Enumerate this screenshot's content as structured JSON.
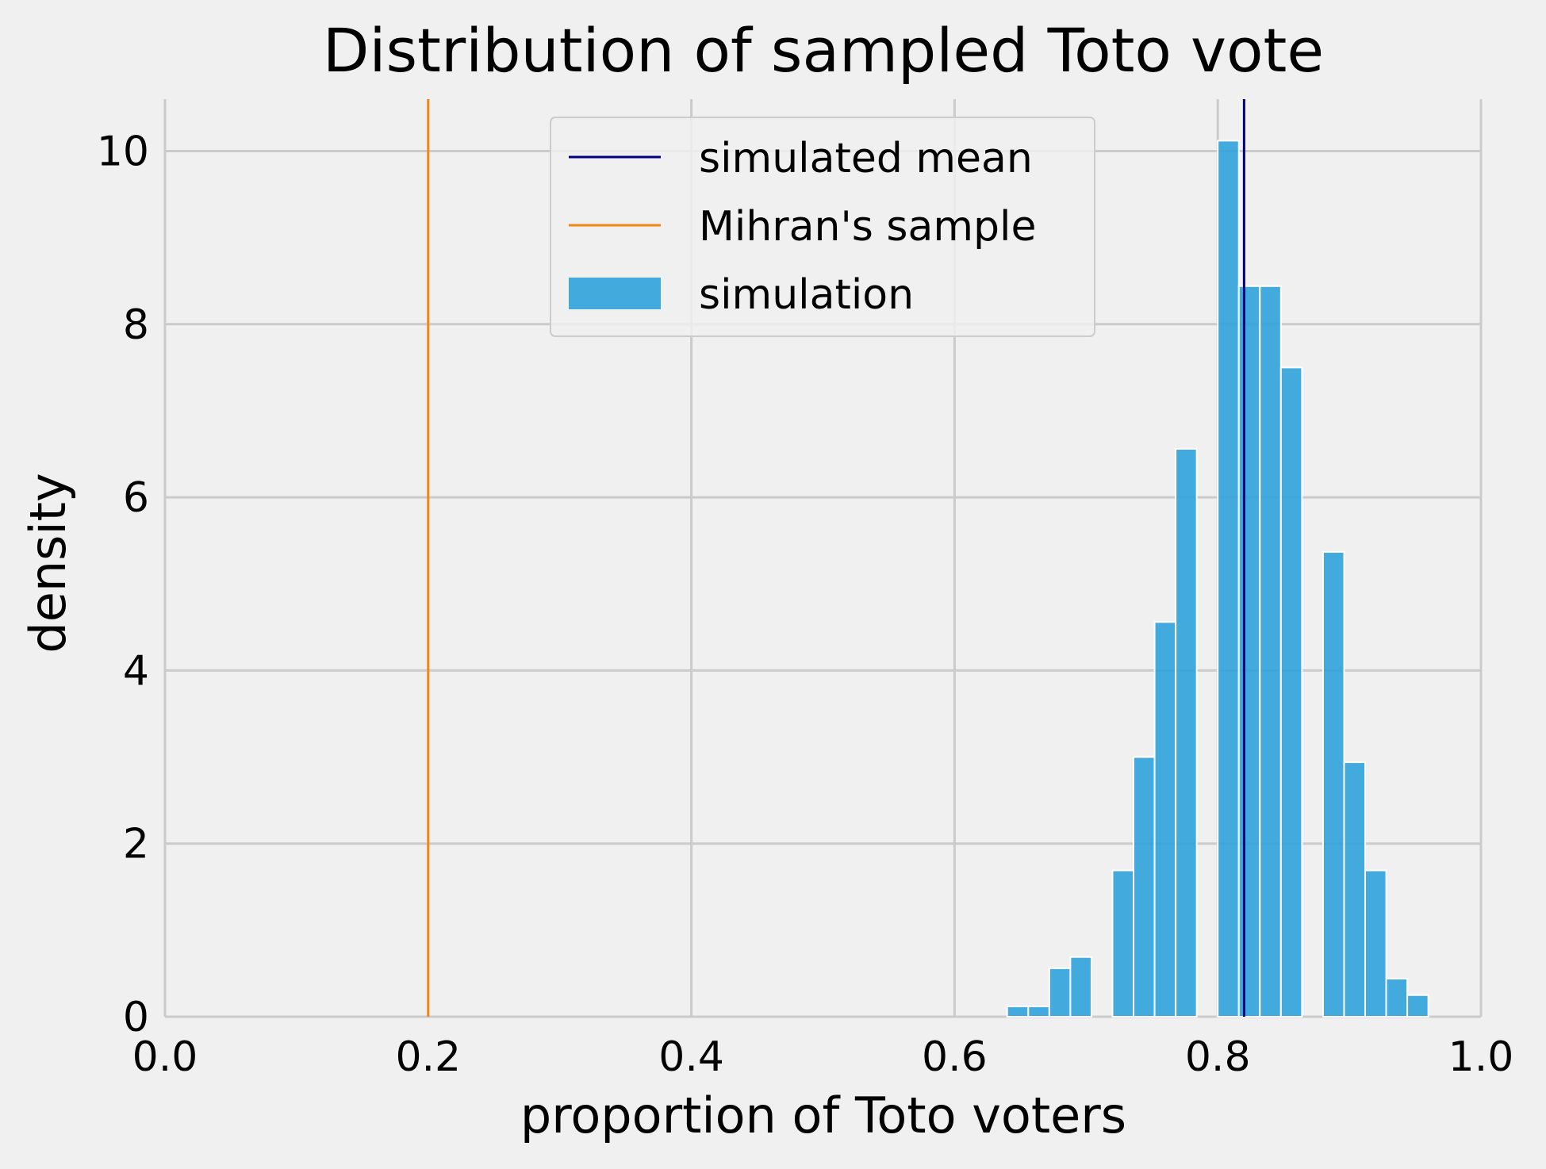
{
  "chart_data": {
    "type": "bar",
    "title": "Distribution of sampled Toto vote",
    "xlabel": "proportion of Toto voters",
    "ylabel": "density",
    "xlim": [
      0.0,
      1.0
    ],
    "ylim": [
      0,
      10.6
    ],
    "xticks": [
      0.0,
      0.2,
      0.4,
      0.6,
      0.8,
      1.0
    ],
    "xtick_labels": [
      "0.0",
      "0.2",
      "0.4",
      "0.6",
      "0.8",
      "1.0"
    ],
    "yticks": [
      0,
      2,
      4,
      6,
      8,
      10
    ],
    "ytick_labels": [
      "0",
      "2",
      "4",
      "6",
      "8",
      "10"
    ],
    "grid": true,
    "legend_position": "top-center",
    "legend": [
      {
        "label": "simulated mean",
        "kind": "line",
        "color": "#00007f"
      },
      {
        "label": "Mihran's sample",
        "kind": "line",
        "color": "#f58518"
      },
      {
        "label": "simulation",
        "kind": "patch",
        "color": "#30a2da"
      }
    ],
    "histogram": {
      "name": "simulation",
      "color": "#30a2da",
      "bin_width": 0.016,
      "bins": [
        {
          "x0": 0.64,
          "x1": 0.656,
          "density": 0.12
        },
        {
          "x0": 0.656,
          "x1": 0.672,
          "density": 0.12
        },
        {
          "x0": 0.672,
          "x1": 0.688,
          "density": 0.56
        },
        {
          "x0": 0.688,
          "x1": 0.704,
          "density": 0.69
        },
        {
          "x0": 0.72,
          "x1": 0.736,
          "density": 1.69
        },
        {
          "x0": 0.736,
          "x1": 0.752,
          "density": 3.0
        },
        {
          "x0": 0.752,
          "x1": 0.768,
          "density": 4.56
        },
        {
          "x0": 0.768,
          "x1": 0.784,
          "density": 6.56
        },
        {
          "x0": 0.8,
          "x1": 0.816,
          "density": 10.12
        },
        {
          "x0": 0.816,
          "x1": 0.832,
          "density": 8.44
        },
        {
          "x0": 0.832,
          "x1": 0.848,
          "density": 8.44
        },
        {
          "x0": 0.848,
          "x1": 0.864,
          "density": 7.5
        },
        {
          "x0": 0.88,
          "x1": 0.896,
          "density": 5.37
        },
        {
          "x0": 0.896,
          "x1": 0.912,
          "density": 2.94
        },
        {
          "x0": 0.912,
          "x1": 0.928,
          "density": 1.69
        },
        {
          "x0": 0.928,
          "x1": 0.944,
          "density": 0.44
        },
        {
          "x0": 0.944,
          "x1": 0.96,
          "density": 0.25
        }
      ]
    },
    "vlines": [
      {
        "name": "simulated mean",
        "x": 0.82,
        "color": "#00007f"
      },
      {
        "name": "Mihran's sample",
        "x": 0.2,
        "color": "#f58518"
      }
    ]
  }
}
